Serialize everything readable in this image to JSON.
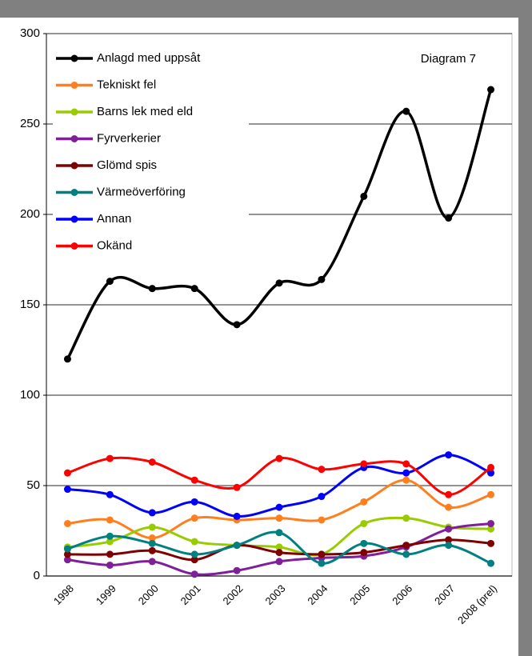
{
  "chart_data": {
    "type": "line",
    "annotation": "Diagram 7",
    "categories": [
      "1998",
      "1999",
      "2000",
      "2001",
      "2002",
      "2003",
      "2004",
      "2005",
      "2006",
      "2007",
      "2008 (prel)"
    ],
    "series": [
      {
        "name": "Anlagd med uppsåt",
        "color": "#000000",
        "values": [
          120,
          163,
          159,
          159,
          139,
          162,
          164,
          210,
          257,
          198,
          269
        ]
      },
      {
        "name": "Tekniskt fel",
        "color": "#ff7f1e",
        "values": [
          29,
          31,
          21,
          32,
          31,
          32,
          31,
          41,
          53,
          38,
          45
        ]
      },
      {
        "name": "Barns lek med eld",
        "color": "#99cc00",
        "values": [
          16,
          19,
          27,
          19,
          17,
          16,
          12,
          29,
          32,
          27,
          26
        ]
      },
      {
        "name": "Fyrverkerier",
        "color": "#7f1f99",
        "values": [
          9,
          6,
          8,
          1,
          3,
          8,
          10,
          11,
          16,
          26,
          29
        ]
      },
      {
        "name": "Glömd spis",
        "color": "#7f0000",
        "values": [
          12,
          12,
          14,
          9,
          17,
          13,
          12,
          13,
          17,
          20,
          18
        ]
      },
      {
        "name": "Värmeöverföring",
        "color": "#008080",
        "values": [
          15,
          22,
          18,
          12,
          17,
          24,
          7,
          18,
          12,
          17,
          7
        ]
      },
      {
        "name": "Annan",
        "color": "#0000ff",
        "values": [
          48,
          45,
          35,
          41,
          33,
          38,
          44,
          60,
          57,
          67,
          57
        ]
      },
      {
        "name": "Okänd",
        "color": "#ff0000",
        "values": [
          57,
          65,
          63,
          53,
          49,
          65,
          59,
          62,
          62,
          45,
          60
        ]
      }
    ],
    "ylim": [
      0,
      300
    ],
    "yticks": [
      0,
      50,
      100,
      150,
      200,
      250,
      300
    ],
    "grid": true,
    "legend": "top-left"
  }
}
